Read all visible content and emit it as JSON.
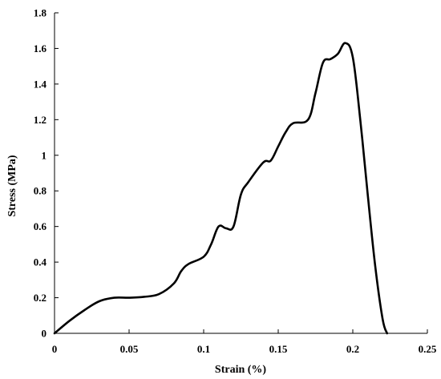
{
  "chart_data": {
    "type": "line",
    "title": "",
    "xlabel": "Strain (%)",
    "ylabel": "Stress (MPa)",
    "xlim": [
      0,
      0.25
    ],
    "ylim": [
      0,
      1.8
    ],
    "xticks": [
      0,
      0.05,
      0.1,
      0.15,
      0.2,
      0.25
    ],
    "xtick_labels": [
      "0",
      "0.05",
      "0.1",
      "0.15",
      "0.2",
      "0.25"
    ],
    "yticks": [
      0,
      0.2,
      0.4,
      0.6,
      0.8,
      1.0,
      1.2,
      1.4,
      1.6,
      1.8
    ],
    "ytick_labels": [
      "0",
      "0.2",
      "0.4",
      "0.6",
      "0.8",
      "1",
      "1.2",
      "1.4",
      "1.6",
      "1.8"
    ],
    "grid": false,
    "legend": "none",
    "line_color": "#000000",
    "series": [
      {
        "x": [
          0,
          0.01,
          0.02,
          0.03,
          0.04,
          0.05,
          0.06,
          0.07,
          0.08,
          0.085,
          0.09,
          0.1,
          0.105,
          0.11,
          0.115,
          0.12,
          0.125,
          0.13,
          0.14,
          0.145,
          0.15,
          0.155,
          0.16,
          0.17,
          0.175,
          0.18,
          0.185,
          0.19,
          0.195,
          0.2,
          0.205,
          0.21,
          0.215,
          0.22,
          0.223
        ],
        "y": [
          0,
          0.07,
          0.13,
          0.18,
          0.2,
          0.2,
          0.205,
          0.22,
          0.28,
          0.35,
          0.39,
          0.43,
          0.5,
          0.6,
          0.59,
          0.6,
          0.78,
          0.85,
          0.96,
          0.97,
          1.05,
          1.13,
          1.18,
          1.2,
          1.35,
          1.52,
          1.54,
          1.57,
          1.63,
          1.55,
          1.2,
          0.78,
          0.38,
          0.08,
          0
        ]
      }
    ]
  }
}
